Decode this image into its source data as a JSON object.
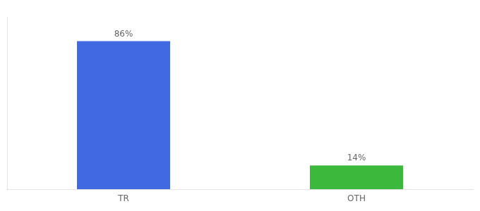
{
  "chart_data": {
    "type": "bar",
    "categories": [
      "TR",
      "OTH"
    ],
    "values": [
      86,
      14
    ],
    "value_labels": [
      "86%",
      "14%"
    ],
    "data_labels": true,
    "colors": [
      "#4169e1",
      "#3cb83c"
    ],
    "ylim": [
      0,
      100
    ],
    "tick_labels": "x",
    "grid": false
  }
}
